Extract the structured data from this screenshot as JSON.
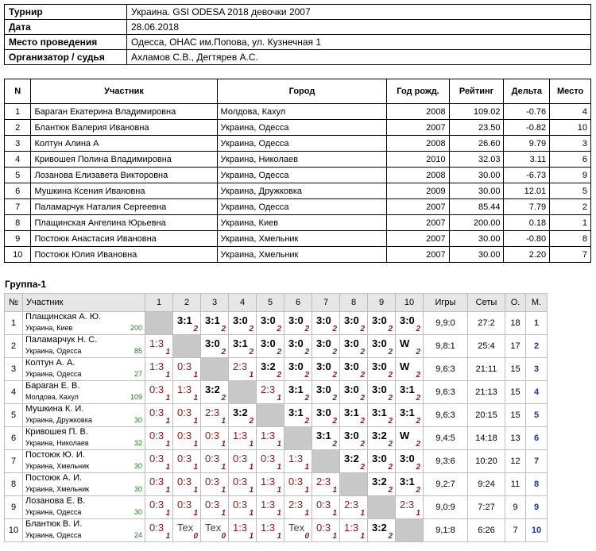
{
  "info": [
    {
      "k": "Турнир",
      "v": "Украина. GSI ODESA 2018 девочки 2007"
    },
    {
      "k": "Дата",
      "v": "28.06.2018"
    },
    {
      "k": "Место проведения",
      "v": "Одесса, ОНАС им.Попова, ул. Кузнечная 1"
    },
    {
      "k": "Организатор / судья",
      "v": "Ахламов С.В., Дегтярев А.С."
    }
  ],
  "parts_header": [
    "N",
    "Участник",
    "Город",
    "Год рожд.",
    "Рейтинг",
    "Дельта",
    "Место"
  ],
  "parts": [
    [
      "1",
      "Бараган Екатерина Владимировна",
      "Молдова, Кахул",
      "2008",
      "109.02",
      "-0.76",
      "4"
    ],
    [
      "2",
      "Блантюк Валерия Ивановна",
      "Украина, Одесса",
      "2007",
      "23.50",
      "-0.82",
      "10"
    ],
    [
      "3",
      "Колтун Алина А",
      "Украина, Одесса",
      "2008",
      "26.60",
      "9.79",
      "3"
    ],
    [
      "4",
      "Кривошея Полина Владимировна",
      "Украина, Николаев",
      "2010",
      "32.03",
      "3.11",
      "6"
    ],
    [
      "5",
      "Лозанова Елизавета Викторовна",
      "Украина, Одесса",
      "2008",
      "30.00",
      "-6.73",
      "9"
    ],
    [
      "6",
      "Мушкина Ксения Ивановна",
      "Украина, Дружковка",
      "2009",
      "30.00",
      "12.01",
      "5"
    ],
    [
      "7",
      "Паламарчук Наталия Сергеевна",
      "Украина, Одесса",
      "2007",
      "85.44",
      "7.79",
      "2"
    ],
    [
      "8",
      "Плащинская Ангелина Юрьевна",
      "Украина, Киев",
      "2007",
      "200.00",
      "0.18",
      "1"
    ],
    [
      "9",
      "Постоюк Анастасия Ивановна",
      "Украина, Хмельник",
      "2007",
      "30.00",
      "-0.80",
      "8"
    ],
    [
      "10",
      "Постоюк Юлия Ивановна",
      "Украина, Хмельник",
      "2007",
      "30.00",
      "2.20",
      "7"
    ]
  ],
  "group_title": "Группа-1",
  "grid_header": [
    "№",
    "Участник",
    "1",
    "2",
    "3",
    "4",
    "5",
    "6",
    "7",
    "8",
    "9",
    "10",
    "Игры",
    "Сеты",
    "О.",
    "М."
  ],
  "grid": [
    {
      "n": "1",
      "name": "Плащинская А. Ю.",
      "city": "Украина, Киев",
      "rating": "200",
      "res": [
        null,
        [
          "3:1",
          "2"
        ],
        [
          "3:1",
          "2"
        ],
        [
          "3:0",
          "2"
        ],
        [
          "3:0",
          "2"
        ],
        [
          "3:0",
          "2"
        ],
        [
          "3:0",
          "2"
        ],
        [
          "3:0",
          "2"
        ],
        [
          "3:0",
          "2"
        ],
        [
          "3:0",
          "2"
        ]
      ],
      "games": "9,9:0",
      "sets": "27:2",
      "pts": "18",
      "place": "1"
    },
    {
      "n": "2",
      "name": "Паламарчук Н. С.",
      "city": "Украина, Одесса",
      "rating": "85",
      "res": [
        [
          "1:3",
          "1"
        ],
        null,
        [
          "3:0",
          "2"
        ],
        [
          "3:1",
          "2"
        ],
        [
          "3:0",
          "2"
        ],
        [
          "3:0",
          "2"
        ],
        [
          "3:0",
          "2"
        ],
        [
          "3:0",
          "2"
        ],
        [
          "3:0",
          "2"
        ],
        [
          "W",
          "2"
        ]
      ],
      "games": "9,8:1",
      "sets": "25:4",
      "pts": "17",
      "place": "2"
    },
    {
      "n": "3",
      "name": "Колтун А. А.",
      "city": "Украина, Одесса",
      "rating": "27",
      "res": [
        [
          "1:3",
          "1"
        ],
        [
          "0:3",
          "1"
        ],
        null,
        [
          "2:3",
          "1"
        ],
        [
          "3:2",
          "2"
        ],
        [
          "3:0",
          "2"
        ],
        [
          "3:0",
          "2"
        ],
        [
          "3:0",
          "2"
        ],
        [
          "3:0",
          "2"
        ],
        [
          "W",
          "2"
        ]
      ],
      "games": "9,6:3",
      "sets": "21:11",
      "pts": "15",
      "place": "3"
    },
    {
      "n": "4",
      "name": "Бараган Е. В.",
      "city": "Молдова, Кахул",
      "rating": "109",
      "res": [
        [
          "0:3",
          "1"
        ],
        [
          "1:3",
          "1"
        ],
        [
          "3:2",
          "2"
        ],
        null,
        [
          "2:3",
          "1"
        ],
        [
          "3:1",
          "2"
        ],
        [
          "3:0",
          "2"
        ],
        [
          "3:0",
          "2"
        ],
        [
          "3:0",
          "2"
        ],
        [
          "3:1",
          "2"
        ]
      ],
      "games": "9,6:3",
      "sets": "21:13",
      "pts": "15",
      "place": "4"
    },
    {
      "n": "5",
      "name": "Мушкина К. И.",
      "city": "Украина, Дружковка",
      "rating": "30",
      "res": [
        [
          "0:3",
          "1"
        ],
        [
          "0:3",
          "1"
        ],
        [
          "2:3",
          "1"
        ],
        [
          "3:2",
          "2"
        ],
        null,
        [
          "3:1",
          "2"
        ],
        [
          "3:0",
          "2"
        ],
        [
          "3:1",
          "2"
        ],
        [
          "3:1",
          "2"
        ],
        [
          "3:1",
          "2"
        ]
      ],
      "games": "9,6:3",
      "sets": "20:15",
      "pts": "15",
      "place": "5"
    },
    {
      "n": "6",
      "name": "Кривошея П. В.",
      "city": "Украина, Николаев",
      "rating": "32",
      "res": [
        [
          "0:3",
          "1"
        ],
        [
          "0:3",
          "1"
        ],
        [
          "0:3",
          "1"
        ],
        [
          "1:3",
          "1"
        ],
        [
          "1:3",
          "1"
        ],
        null,
        [
          "3:1",
          "2"
        ],
        [
          "3:0",
          "2"
        ],
        [
          "3:2",
          "2"
        ],
        [
          "W",
          "2"
        ]
      ],
      "games": "9,4:5",
      "sets": "14:18",
      "pts": "13",
      "place": "6"
    },
    {
      "n": "7",
      "name": "Постоюк Ю. И.",
      "city": "Украина, Хмельник",
      "rating": "30",
      "res": [
        [
          "0:3",
          "1"
        ],
        [
          "0:3",
          "1"
        ],
        [
          "0:3",
          "1"
        ],
        [
          "0:3",
          "1"
        ],
        [
          "0:3",
          "1"
        ],
        [
          "1:3",
          "1"
        ],
        null,
        [
          "3:2",
          "2"
        ],
        [
          "3:0",
          "2"
        ],
        [
          "3:0",
          "2"
        ]
      ],
      "games": "9,3:6",
      "sets": "10:20",
      "pts": "12",
      "place": "7"
    },
    {
      "n": "8",
      "name": "Постоюк А. И.",
      "city": "Украина, Хмельник",
      "rating": "30",
      "res": [
        [
          "0:3",
          "1"
        ],
        [
          "0:3",
          "1"
        ],
        [
          "0:3",
          "1"
        ],
        [
          "0:3",
          "1"
        ],
        [
          "1:3",
          "1"
        ],
        [
          "0:3",
          "1"
        ],
        [
          "2:3",
          "1"
        ],
        null,
        [
          "3:2",
          "2"
        ],
        [
          "3:1",
          "2"
        ]
      ],
      "games": "9,2:7",
      "sets": "9:24",
      "pts": "11",
      "place": "8"
    },
    {
      "n": "9",
      "name": "Лозанова Е. В.",
      "city": "Украина, Одесса",
      "rating": "30",
      "res": [
        [
          "0:3",
          "1"
        ],
        [
          "0:3",
          "1"
        ],
        [
          "0:3",
          "1"
        ],
        [
          "0:3",
          "1"
        ],
        [
          "1:3",
          "1"
        ],
        [
          "2:3",
          "1"
        ],
        [
          "0:3",
          "1"
        ],
        [
          "2:3",
          "1"
        ],
        null,
        [
          "2:3",
          "1"
        ]
      ],
      "games": "9,0:9",
      "sets": "7:27",
      "pts": "9",
      "place": "9"
    },
    {
      "n": "10",
      "name": "Блантюк В. И.",
      "city": "Украина, Одесса",
      "rating": "24",
      "res": [
        [
          "0:3",
          "1"
        ],
        [
          "Tex",
          "0"
        ],
        [
          "Tex",
          "0"
        ],
        [
          "1:3",
          "1"
        ],
        [
          "1:3",
          "1"
        ],
        [
          "Tex",
          "0"
        ],
        [
          "0:3",
          "1"
        ],
        [
          "1:3",
          "1"
        ],
        [
          "3:2",
          "2"
        ],
        null
      ],
      "games": "9,1:8",
      "sets": "6:26",
      "pts": "7",
      "place": "10"
    }
  ]
}
